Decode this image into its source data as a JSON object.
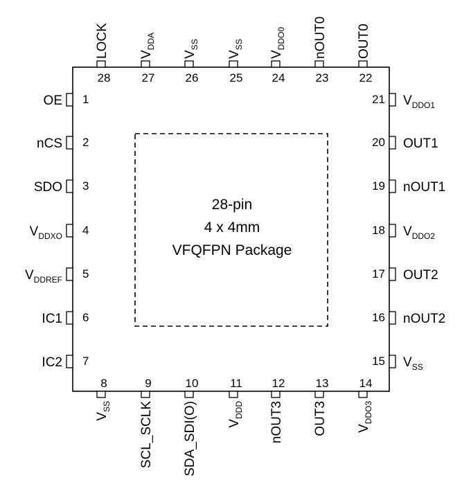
{
  "package": {
    "lines": [
      "28-pin",
      "4 x 4mm",
      "VFQFPN Package"
    ]
  },
  "pins": {
    "left": [
      {
        "num": "1",
        "label": "OE",
        "sub": ""
      },
      {
        "num": "2",
        "label": "nCS",
        "sub": ""
      },
      {
        "num": "3",
        "label": "SDO",
        "sub": ""
      },
      {
        "num": "4",
        "label": "V",
        "sub": "DDXO"
      },
      {
        "num": "5",
        "label": "V",
        "sub": "DDREF"
      },
      {
        "num": "6",
        "label": "IC1",
        "sub": ""
      },
      {
        "num": "7",
        "label": "IC2",
        "sub": ""
      }
    ],
    "bottom": [
      {
        "num": "8",
        "label": "V",
        "sub": "SS"
      },
      {
        "num": "9",
        "label": "SCL_SCLK",
        "sub": ""
      },
      {
        "num": "10",
        "label": "SDA_SDI(O)",
        "sub": ""
      },
      {
        "num": "11",
        "label": "V",
        "sub": "DDD"
      },
      {
        "num": "12",
        "label": "nOUT3",
        "sub": ""
      },
      {
        "num": "13",
        "label": "OUT3",
        "sub": ""
      },
      {
        "num": "14",
        "label": "V",
        "sub": "DDO3"
      }
    ],
    "right": [
      {
        "num": "21",
        "label": "V",
        "sub": "DDO1"
      },
      {
        "num": "20",
        "label": "OUT1",
        "sub": ""
      },
      {
        "num": "19",
        "label": "nOUT1",
        "sub": ""
      },
      {
        "num": "18",
        "label": "V",
        "sub": "DDO2"
      },
      {
        "num": "17",
        "label": "OUT2",
        "sub": ""
      },
      {
        "num": "16",
        "label": "nOUT2",
        "sub": ""
      },
      {
        "num": "15",
        "label": "V",
        "sub": "SS"
      }
    ],
    "top": [
      {
        "num": "28",
        "label": "LOCK",
        "sub": ""
      },
      {
        "num": "27",
        "label": "V",
        "sub": "DDA"
      },
      {
        "num": "26",
        "label": "V",
        "sub": "SS"
      },
      {
        "num": "25",
        "label": "V",
        "sub": "SS"
      },
      {
        "num": "24",
        "label": "V",
        "sub": "DDO0"
      },
      {
        "num": "23",
        "label": "nOUT0",
        "sub": ""
      },
      {
        "num": "22",
        "label": "OUT0",
        "sub": ""
      }
    ]
  }
}
